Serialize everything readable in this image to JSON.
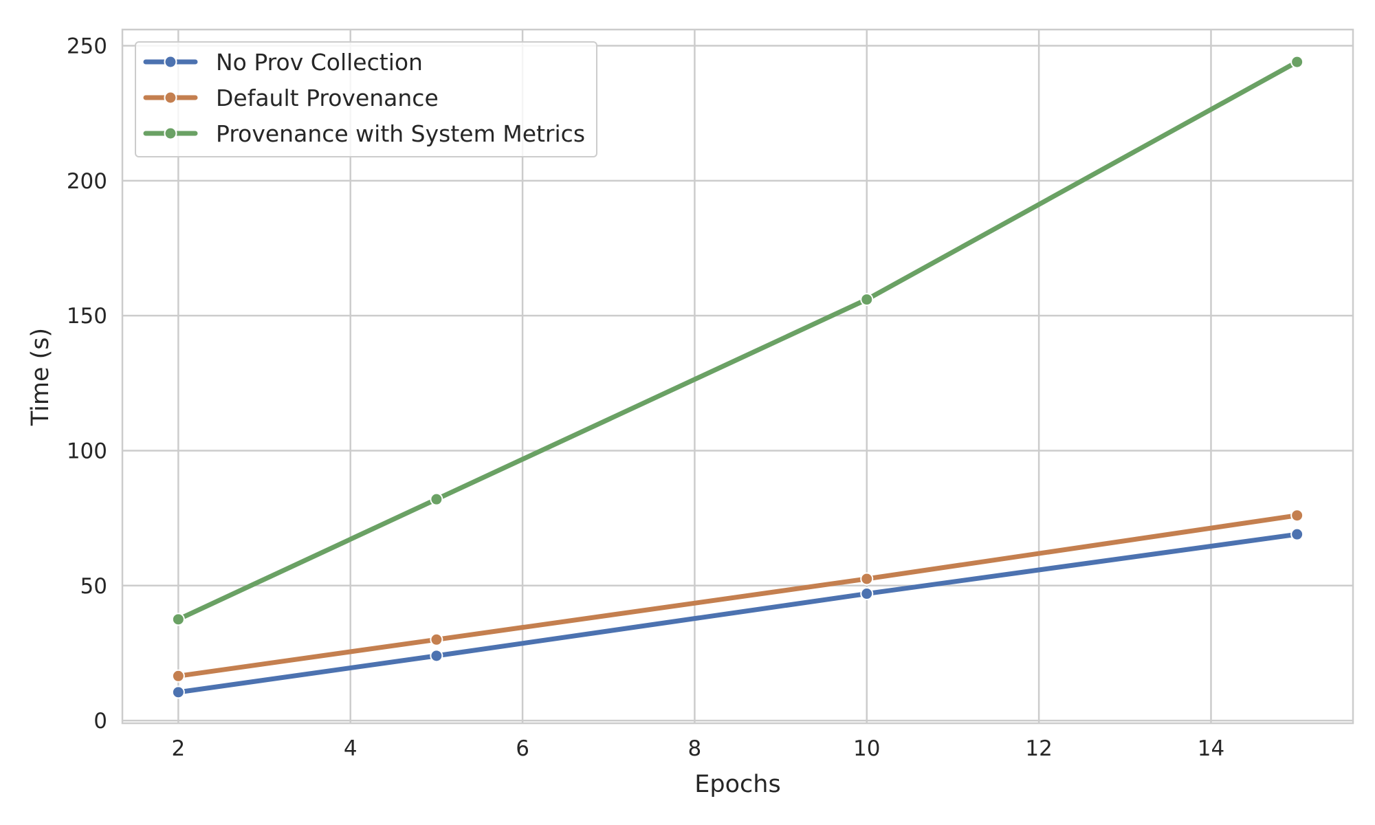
{
  "chart_data": {
    "type": "line",
    "title": "",
    "xlabel": "Epochs",
    "ylabel": "Time (s)",
    "xlim": [
      1.35,
      15.65
    ],
    "ylim": [
      -1,
      256
    ],
    "xticks": [
      2,
      4,
      6,
      8,
      10,
      12,
      14
    ],
    "yticks": [
      0,
      50,
      100,
      150,
      200,
      250
    ],
    "grid": true,
    "legend_position": "top-left",
    "series": [
      {
        "name": "No Prov Collection",
        "color": "#4c72b0",
        "x": [
          2,
          5,
          10,
          15
        ],
        "y": [
          10.5,
          24,
          47,
          69
        ]
      },
      {
        "name": "Default Provenance",
        "color": "#c47f4f",
        "x": [
          2,
          5,
          10,
          15
        ],
        "y": [
          16.5,
          30,
          52.5,
          76
        ]
      },
      {
        "name": "Provenance with System Metrics",
        "color": "#6aa164",
        "x": [
          2,
          5,
          10,
          15
        ],
        "y": [
          37.5,
          82,
          156,
          244
        ]
      }
    ]
  }
}
